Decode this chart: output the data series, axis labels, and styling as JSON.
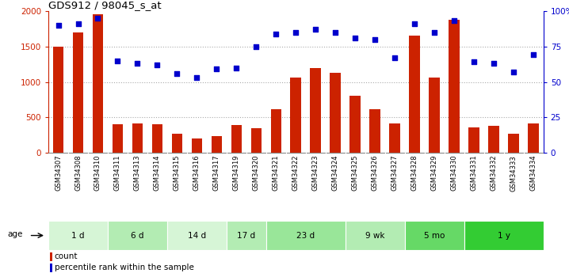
{
  "title": "GDS912 / 98045_s_at",
  "samples": [
    "GSM34307",
    "GSM34308",
    "GSM34310",
    "GSM34311",
    "GSM34313",
    "GSM34314",
    "GSM34315",
    "GSM34316",
    "GSM34317",
    "GSM34319",
    "GSM34320",
    "GSM34321",
    "GSM34322",
    "GSM34323",
    "GSM34324",
    "GSM34325",
    "GSM34326",
    "GSM34327",
    "GSM34328",
    "GSM34329",
    "GSM34330",
    "GSM34331",
    "GSM34332",
    "GSM34333",
    "GSM34334"
  ],
  "counts": [
    1500,
    1700,
    1950,
    400,
    410,
    400,
    275,
    200,
    240,
    395,
    350,
    620,
    1060,
    1200,
    1130,
    800,
    610,
    415,
    1650,
    1060,
    1880,
    360,
    385,
    270,
    415
  ],
  "percentiles": [
    90,
    91,
    95,
    65,
    63,
    62,
    56,
    53,
    59,
    60,
    75,
    84,
    85,
    87,
    85,
    81,
    80,
    67,
    91,
    85,
    93,
    64,
    63,
    57,
    69
  ],
  "age_groups": [
    {
      "label": "1 d",
      "start": 0,
      "end": 3,
      "color": "#d6f5d6"
    },
    {
      "label": "6 d",
      "start": 3,
      "end": 6,
      "color": "#b3ecb3"
    },
    {
      "label": "14 d",
      "start": 6,
      "end": 9,
      "color": "#d6f5d6"
    },
    {
      "label": "17 d",
      "start": 9,
      "end": 11,
      "color": "#b3ecb3"
    },
    {
      "label": "23 d",
      "start": 11,
      "end": 15,
      "color": "#99e699"
    },
    {
      "label": "9 wk",
      "start": 15,
      "end": 18,
      "color": "#b3ecb3"
    },
    {
      "label": "5 mo",
      "start": 18,
      "end": 21,
      "color": "#66d966"
    },
    {
      "label": "1 y",
      "start": 21,
      "end": 25,
      "color": "#33cc33"
    }
  ],
  "bar_color": "#cc2200",
  "dot_color": "#0000cc",
  "ylim_left": [
    0,
    2000
  ],
  "ylim_right": [
    0,
    100
  ],
  "yticks_left": [
    0,
    500,
    1000,
    1500,
    2000
  ],
  "ytick_labels_left": [
    "0",
    "500",
    "1000",
    "1500",
    "2000"
  ],
  "yticks_right": [
    0,
    25,
    50,
    75,
    100
  ],
  "ytick_labels_right": [
    "0",
    "25",
    "50",
    "75",
    "100%"
  ],
  "grid_values": [
    500,
    1000,
    1500
  ],
  "grid_color": "#aaaaaa",
  "xtick_bg_color": "#cccccc",
  "legend_count_color": "#cc2200",
  "legend_dot_color": "#0000cc"
}
